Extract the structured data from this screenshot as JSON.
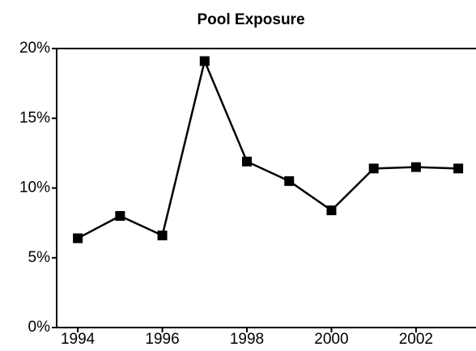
{
  "chart_data": {
    "type": "line",
    "title": "Pool Exposure",
    "x": [
      1994,
      1995,
      1996,
      1997,
      1998,
      1999,
      2000,
      2001,
      2002,
      2003
    ],
    "series": [
      {
        "name": "Pool Exposure",
        "color": "#000000",
        "values": [
          6.4,
          8.0,
          6.6,
          19.1,
          11.9,
          10.5,
          8.4,
          11.4,
          11.5,
          11.4
        ]
      }
    ],
    "xlim": [
      1993.5,
      2003.4
    ],
    "xticks": [
      1994,
      1996,
      1998,
      2000,
      2002
    ],
    "ylim": [
      0,
      20
    ],
    "yticks": [
      {
        "value": 0,
        "label": "0%"
      },
      {
        "value": 5,
        "label": "5%"
      },
      {
        "value": 10,
        "label": "10%"
      },
      {
        "value": 15,
        "label": "15%"
      },
      {
        "value": 20,
        "label": "20%"
      }
    ],
    "grid": false
  }
}
